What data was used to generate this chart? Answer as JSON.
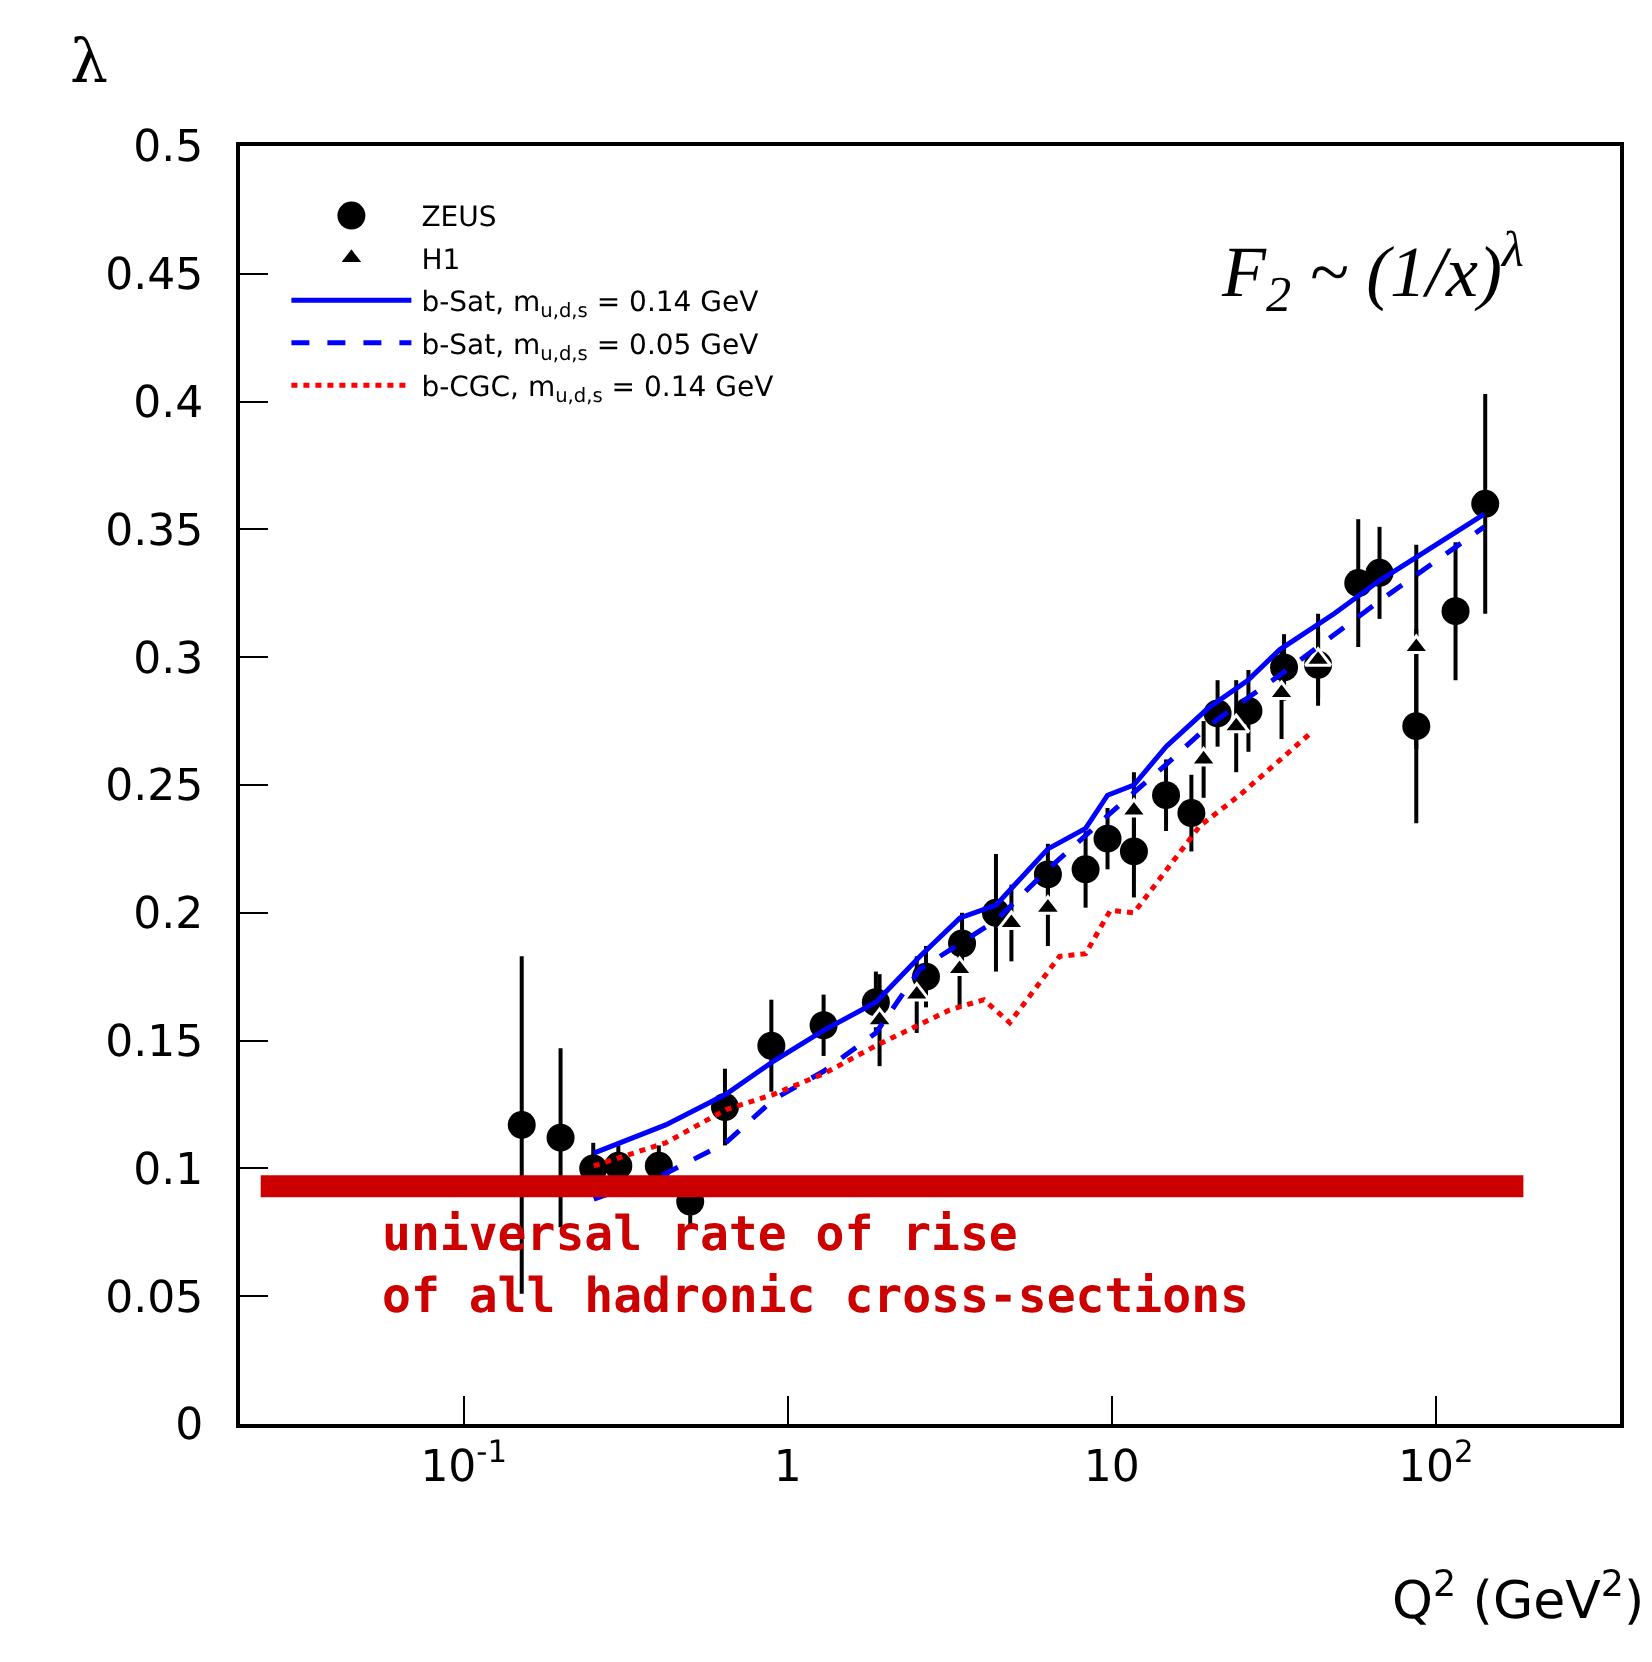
{
  "chart_data": {
    "type": "scatter",
    "ylabel": "λ",
    "xlabel": "Q$^{2}$ (GeV$^{2}$)",
    "annotations": [
      "F$_{2}$ ~ (1/x)$^{λ}$"
    ],
    "log": "x",
    "xlim": [
      0.0204,
      370
    ],
    "xticks": [
      {
        "value": 0.1,
        "label": "10$^{-1}$"
      },
      1,
      10,
      {
        "value": 100,
        "label": "10$^{2}$"
      }
    ],
    "ylim": [
      0,
      0.5
    ],
    "yticks": [
      0,
      0.05,
      0.1,
      0.15,
      0.2,
      0.25,
      0.3,
      0.35,
      0.4,
      0.45,
      0.5
    ],
    "grid": false,
    "legend": "top left",
    "ref_lines": [
      {
        "axis": "y",
        "value": 0.093,
        "label": "universal rate of rise\nof all hadronic cross-sections",
        "color": "#cc0000"
      }
    ],
    "series": [
      {
        "name": "ZEUS",
        "marker": "circle",
        "color": "#000000",
        "x": [
          0.151,
          0.199,
          0.251,
          0.3,
          0.4,
          0.5,
          0.64,
          0.89,
          1.29,
          1.87,
          2.67,
          3.45,
          4.39,
          6.35,
          8.3,
          9.7,
          11.7,
          14.7,
          17.6,
          21.2,
          26.4,
          34,
          43.3,
          57.6,
          67,
          87,
          115,
          142
        ],
        "values": [
          0.117,
          0.112,
          0.1,
          0.101,
          0.101,
          0.087,
          0.124,
          0.148,
          0.156,
          0.165,
          0.175,
          0.188,
          0.2,
          0.215,
          0.217,
          0.229,
          0.224,
          0.246,
          0.239,
          0.278,
          0.279,
          0.296,
          0.297,
          0.329,
          0.333,
          0.273,
          0.318,
          0.36
        ],
        "errors": [
          0.066,
          0.035,
          0.01,
          0.008,
          0.008,
          0.01,
          0.015,
          0.018,
          0.012,
          0.012,
          0.012,
          0.012,
          0.023,
          0.012,
          0.015,
          0.012,
          0.018,
          0.014,
          0.015,
          0.013,
          0.016,
          0.013,
          0.013,
          0.025,
          0.018,
          0.038,
          0.027,
          0.043
        ]
      },
      {
        "name": "H1",
        "marker": "triangle",
        "color": "#000000",
        "x": [
          1.92,
          2.5,
          3.39,
          4.9,
          6.35,
          11.7,
          19.2,
          24.2,
          33.4,
          43.3,
          87
        ],
        "values": [
          0.158,
          0.168,
          0.178,
          0.196,
          0.202,
          0.24,
          0.26,
          0.273,
          0.286,
          0.299,
          0.304
        ],
        "errors": [
          0.018,
          0.015,
          0.015,
          0.015,
          0.015,
          0.015,
          0.015,
          0.018,
          0.018,
          0.018,
          0.04
        ]
      },
      {
        "name": "b-Sat, m$_{u,d,s}$ = 0.14 GeV",
        "type": "line",
        "line_style": "solid",
        "color": "#0000ff",
        "x": [
          0.252,
          0.42,
          0.644,
          0.905,
          1.29,
          1.87,
          2.56,
          3.4,
          4.39,
          6.35,
          8.3,
          9.7,
          11.7,
          14.7,
          19.8,
          26.3,
          33,
          48.5,
          67,
          141
        ],
        "values": [
          0.106,
          0.117,
          0.129,
          0.142,
          0.154,
          0.165,
          0.183,
          0.198,
          0.203,
          0.225,
          0.233,
          0.246,
          0.25,
          0.265,
          0.28,
          0.291,
          0.303,
          0.317,
          0.33,
          0.356
        ]
      },
      {
        "name": "b-Sat, m$_{u,d,s}$ = 0.05 GeV",
        "type": "line",
        "line_style": "dashed",
        "color": "#0000ff",
        "x": [
          0.252,
          0.42,
          0.644,
          0.905,
          1.29,
          1.87,
          2.56,
          4.39,
          6.35,
          9.9,
          14.7,
          19.8,
          33,
          67,
          141
        ],
        "values": [
          0.088,
          0.098,
          0.11,
          0.127,
          0.138,
          0.153,
          0.178,
          0.197,
          0.217,
          0.239,
          0.258,
          0.273,
          0.293,
          0.322,
          0.351
        ]
      },
      {
        "name": "b-CGC, m$_{u,d,s}$ = 0.14 GeV",
        "type": "line",
        "line_style": "dotted",
        "color": "#ff0000",
        "x": [
          0.252,
          0.42,
          0.644,
          0.905,
          1.29,
          1.87,
          3.16,
          4.03,
          4.84,
          6.9,
          8.3,
          9.9,
          11.7,
          18.7,
          24.8,
          40.8
        ],
        "values": [
          0.101,
          0.11,
          0.123,
          0.129,
          0.137,
          0.148,
          0.162,
          0.166,
          0.157,
          0.183,
          0.184,
          0.201,
          0.2,
          0.234,
          0.246,
          0.27
        ]
      }
    ]
  }
}
